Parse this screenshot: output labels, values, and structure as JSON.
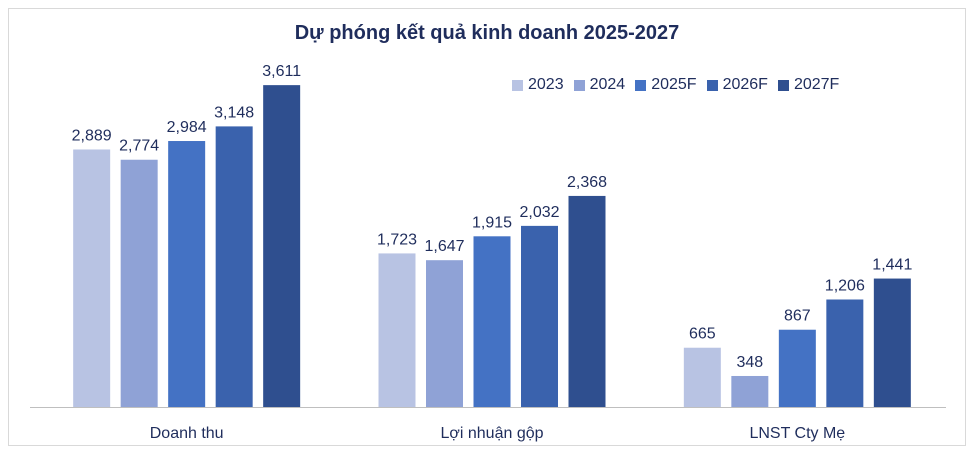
{
  "chart_data": {
    "type": "bar",
    "title": "Dự phóng kết quả kinh doanh 2025-2027",
    "categories": [
      "Doanh thu",
      "Lợi nhuận gộp",
      "LNST Cty Mẹ"
    ],
    "series": [
      {
        "name": "2023",
        "color": "#b8c3e3",
        "values": [
          2889,
          1723,
          665
        ],
        "labels": [
          "2,889",
          "1,723",
          "665"
        ]
      },
      {
        "name": "2024",
        "color": "#8fa2d6",
        "values": [
          2774,
          1647,
          348
        ],
        "labels": [
          "2,774",
          "1,647",
          "348"
        ]
      },
      {
        "name": "2025F",
        "color": "#4472c4",
        "values": [
          2984,
          1915,
          867
        ],
        "labels": [
          "2,984",
          "1,915",
          "867"
        ]
      },
      {
        "name": "2026F",
        "color": "#3a62ad",
        "values": [
          3148,
          2032,
          1206
        ],
        "labels": [
          "3,148",
          "2,032",
          "1,206"
        ]
      },
      {
        "name": "2027F",
        "color": "#2f4f8f",
        "values": [
          3611,
          2368,
          1441
        ],
        "labels": [
          "3,611",
          "2,368",
          "1,441"
        ]
      }
    ],
    "ylim": [
      0,
      4050
    ],
    "legend_position": "top-right",
    "grid": false
  }
}
